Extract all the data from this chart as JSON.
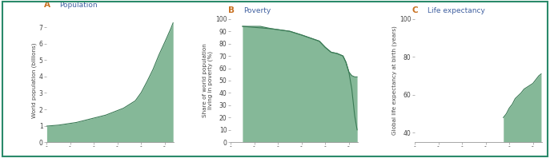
{
  "ylabel_A": "World population (billions)",
  "ylabel_B": "Share of world population\nliving in poverty (%)",
  "ylabel_C": "Global life expectancy at birth (years)",
  "fill_color_dark": "#85b898",
  "fill_color_light": "#bdd9c8",
  "line_color": "#3a7a55",
  "border_color": "#2a8a6a",
  "background_color": "#ffffff",
  "title_color_letter": "#c87020",
  "title_color_text": "#4060a0",
  "xlim": [
    1800,
    2015
  ],
  "ylim_A": [
    0,
    7.5
  ],
  "ylim_B": [
    0,
    100
  ],
  "ylim_C": [
    35,
    100
  ],
  "yticks_A": [
    0,
    1,
    2,
    3,
    4,
    5,
    6,
    7
  ],
  "yticks_B": [
    0,
    10,
    20,
    30,
    40,
    50,
    60,
    70,
    80,
    90,
    100
  ],
  "yticks_C": [
    40,
    60,
    80,
    100
  ],
  "xticks": [
    1800,
    1840,
    1880,
    1920,
    1960,
    2000
  ],
  "pop_x": [
    1800,
    1820,
    1850,
    1900,
    1930,
    1950,
    1960,
    1970,
    1980,
    1990,
    2000,
    2010,
    2014
  ],
  "pop_y": [
    0.98,
    1.04,
    1.2,
    1.65,
    2.07,
    2.52,
    3.02,
    3.7,
    4.43,
    5.31,
    6.09,
    6.9,
    7.26
  ],
  "pov_x_dark": [
    1820,
    1850,
    1870,
    1900,
    1920,
    1950,
    1960,
    1970,
    1980,
    1990,
    1995,
    2000,
    2005,
    2010,
    2014
  ],
  "pov_y_dark": [
    94,
    94,
    92,
    90,
    87,
    82,
    77,
    73,
    72,
    70,
    65,
    57,
    54,
    53,
    53
  ],
  "pov_x_light": [
    1820,
    1870,
    1900,
    1920,
    1950,
    1960,
    1970,
    1980,
    1990,
    1995,
    2000,
    2005,
    2010,
    2014
  ],
  "pov_y_light": [
    94,
    92,
    90,
    87,
    82,
    77,
    73,
    72,
    70,
    65,
    57,
    43,
    21,
    10
  ],
  "life_x": [
    1950,
    1955,
    1960,
    1965,
    1970,
    1975,
    1980,
    1985,
    1990,
    1995,
    2000,
    2005,
    2010,
    2014
  ],
  "life_y": [
    48,
    50,
    53,
    55,
    58,
    59.5,
    61,
    63,
    64,
    65,
    66,
    68,
    70,
    71
  ]
}
